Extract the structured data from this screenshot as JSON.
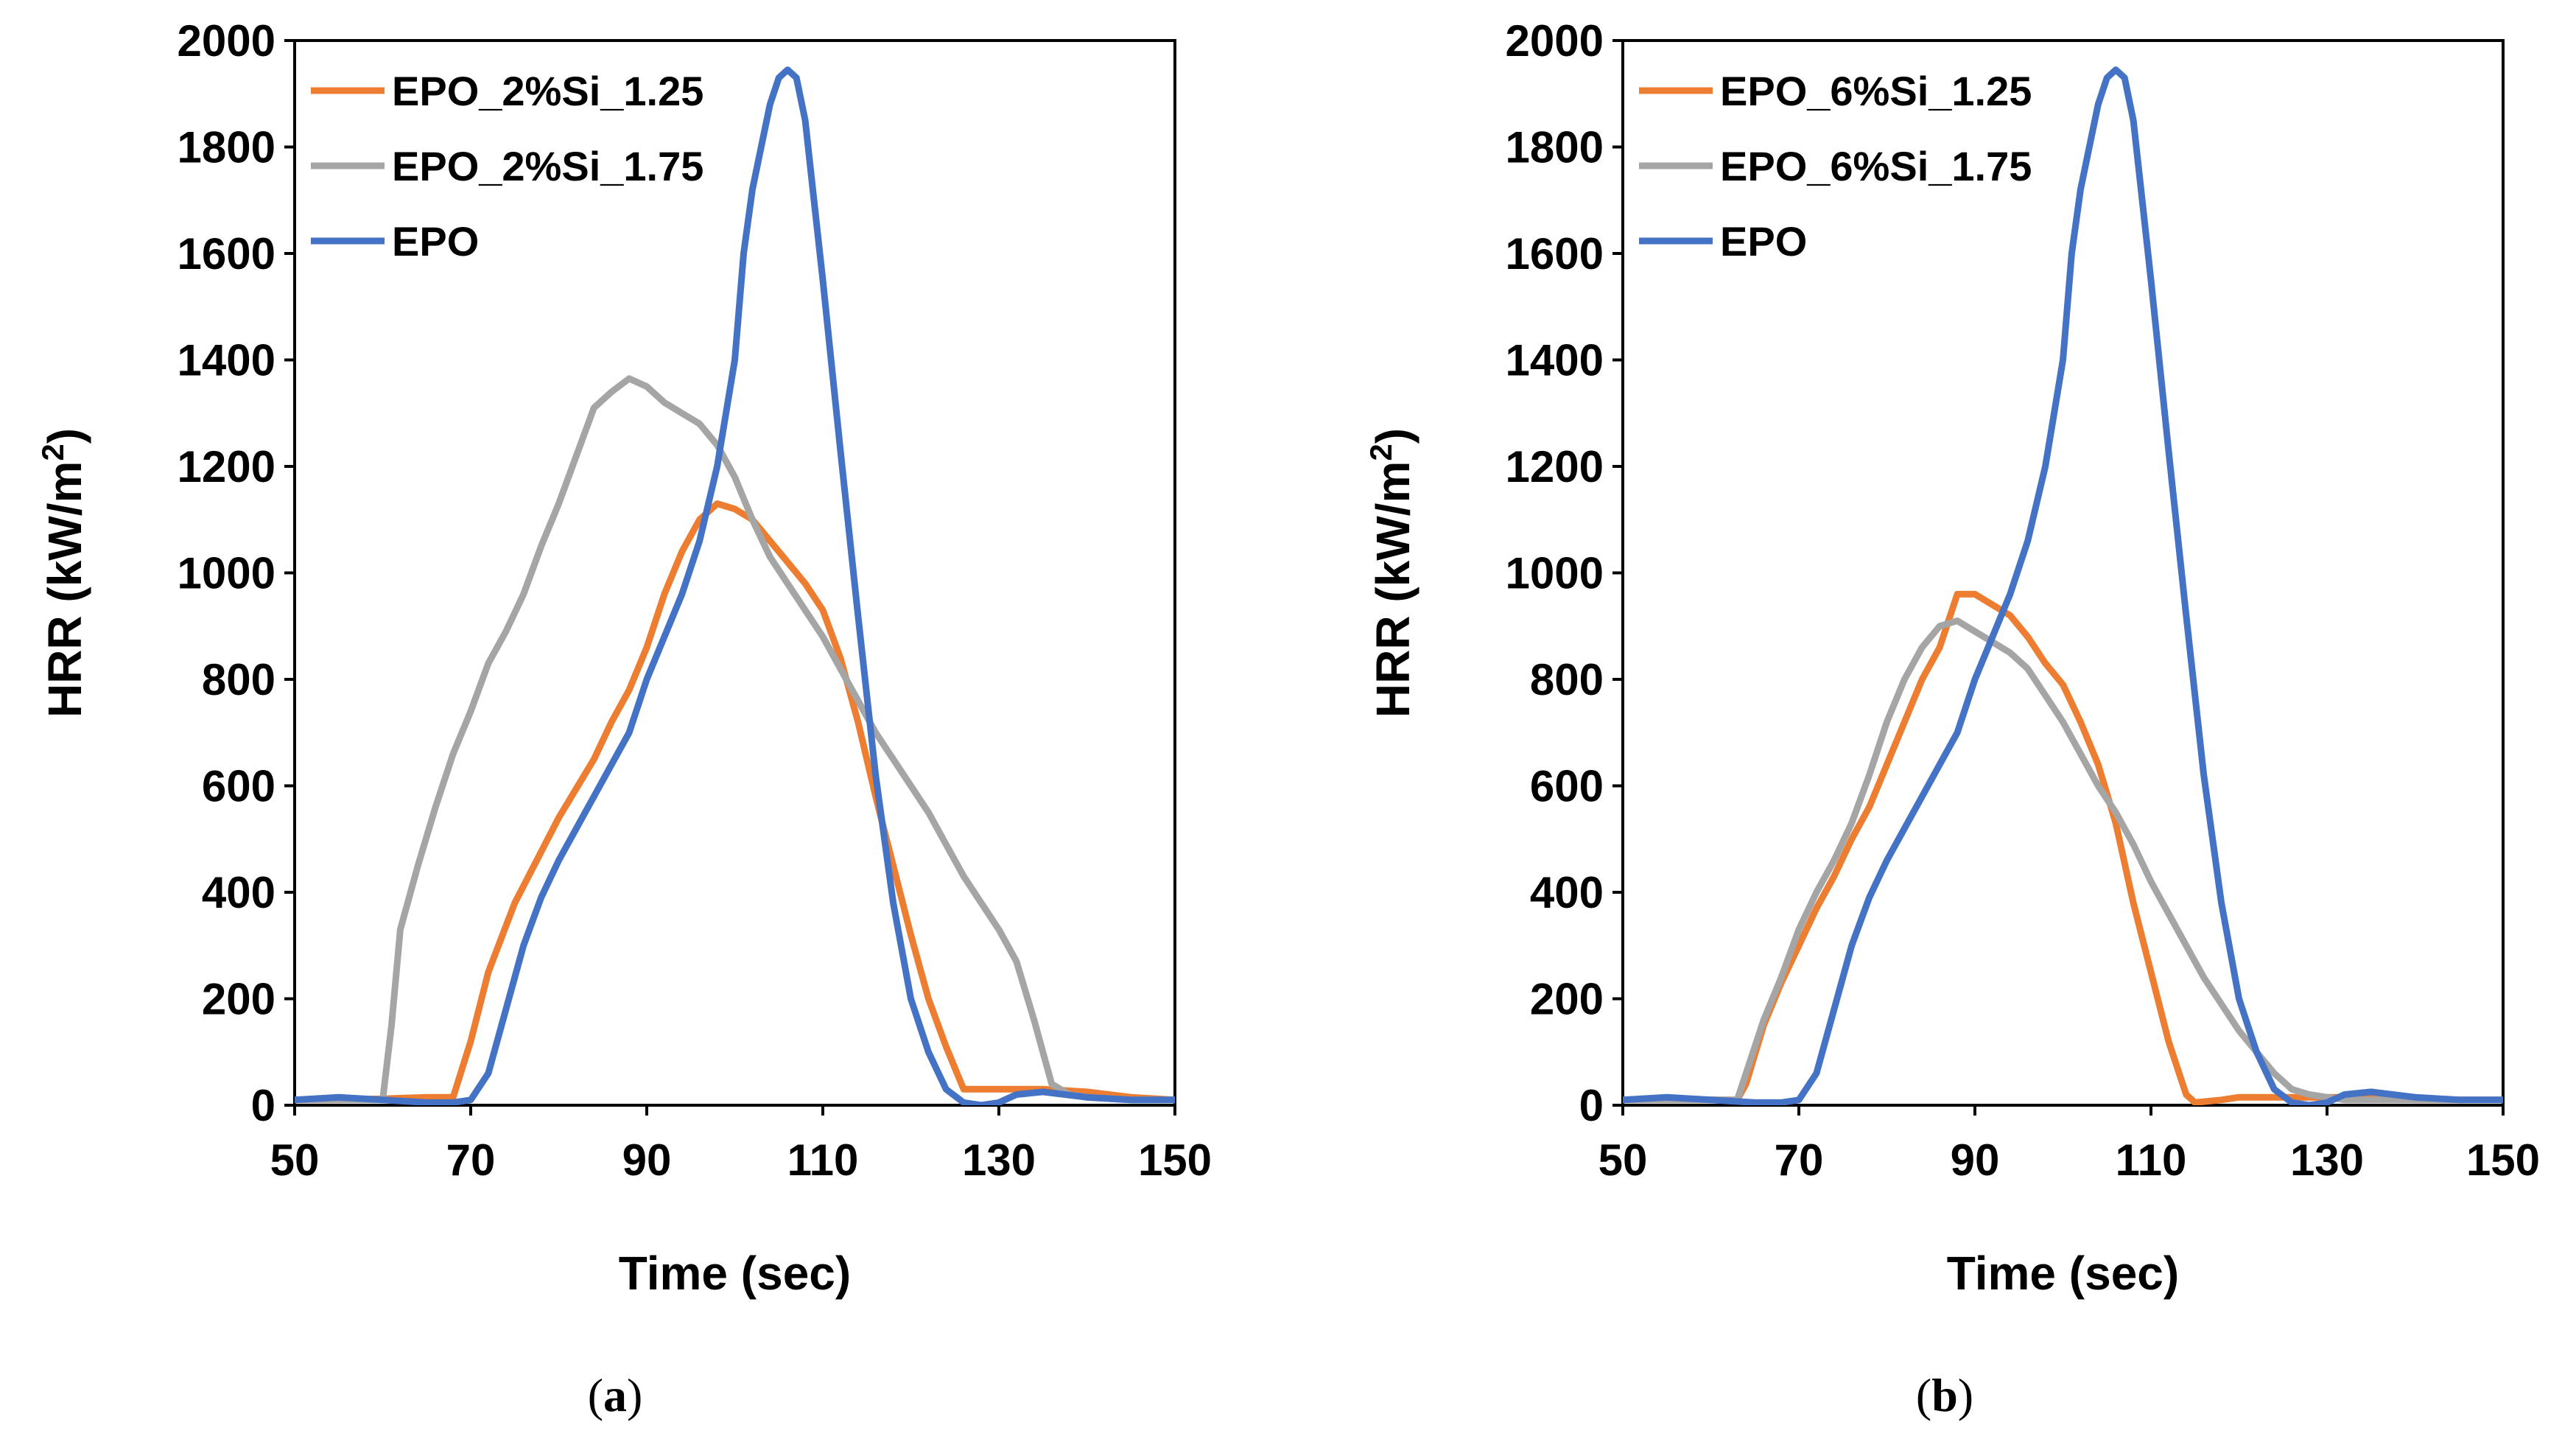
{
  "chart_data": [
    {
      "type": "line",
      "panel_label": "a",
      "xlabel": "Time (sec)",
      "ylabel": "HRR (kW/m",
      "ylabel_sup": "2",
      "ylabel_end": ")",
      "xlim": [
        50,
        150
      ],
      "ylim": [
        0,
        2000
      ],
      "xticks": [
        50,
        70,
        90,
        110,
        130,
        150
      ],
      "yticks": [
        0,
        200,
        400,
        600,
        800,
        1000,
        1200,
        1400,
        1600,
        1800,
        2000
      ],
      "legend_position": "top-left",
      "series": [
        {
          "name": "EPO_2%Si_1.25",
          "color": "#ED7D31",
          "x": [
            50,
            55,
            60,
            65,
            68,
            70,
            72,
            75,
            80,
            84,
            86,
            88,
            90,
            92,
            94,
            96,
            98,
            100,
            102,
            104,
            106,
            108,
            110,
            112,
            114,
            116,
            118,
            120,
            122,
            124,
            126,
            130,
            135,
            140,
            145,
            150
          ],
          "y": [
            10,
            10,
            12,
            15,
            15,
            120,
            250,
            380,
            540,
            650,
            720,
            780,
            860,
            960,
            1040,
            1100,
            1130,
            1120,
            1100,
            1060,
            1020,
            980,
            930,
            840,
            720,
            580,
            450,
            320,
            200,
            110,
            30,
            30,
            30,
            25,
            15,
            10
          ]
        },
        {
          "name": "EPO_2%Si_1.75",
          "color": "#A5A5A5",
          "x": [
            50,
            55,
            60,
            61,
            62,
            64,
            66,
            68,
            70,
            72,
            74,
            76,
            78,
            80,
            82,
            84,
            86,
            88,
            90,
            92,
            94,
            96,
            98,
            100,
            102,
            104,
            106,
            108,
            110,
            112,
            114,
            116,
            118,
            120,
            122,
            124,
            126,
            128,
            130,
            132,
            134,
            136,
            138,
            140,
            145,
            150
          ],
          "y": [
            10,
            10,
            10,
            150,
            330,
            450,
            560,
            660,
            740,
            830,
            890,
            960,
            1050,
            1130,
            1220,
            1310,
            1340,
            1365,
            1350,
            1320,
            1300,
            1280,
            1240,
            1180,
            1100,
            1030,
            980,
            930,
            880,
            820,
            760,
            700,
            650,
            600,
            550,
            490,
            430,
            380,
            330,
            270,
            160,
            40,
            20,
            15,
            10,
            10
          ]
        },
        {
          "name": "EPO",
          "color": "#4472C4",
          "x": [
            50,
            55,
            60,
            65,
            68,
            70,
            72,
            74,
            76,
            78,
            80,
            82,
            84,
            86,
            88,
            90,
            92,
            94,
            96,
            98,
            100,
            101,
            102,
            103,
            104,
            105,
            106,
            107,
            108,
            109,
            110,
            112,
            114,
            116,
            118,
            120,
            122,
            124,
            126,
            128,
            130,
            132,
            135,
            140,
            145,
            150
          ],
          "y": [
            10,
            15,
            10,
            5,
            5,
            10,
            60,
            180,
            300,
            390,
            460,
            520,
            580,
            640,
            700,
            800,
            880,
            960,
            1060,
            1200,
            1400,
            1600,
            1720,
            1800,
            1880,
            1930,
            1945,
            1930,
            1850,
            1700,
            1550,
            1230,
            920,
            620,
            380,
            200,
            100,
            30,
            5,
            0,
            5,
            20,
            25,
            15,
            10,
            10
          ]
        }
      ]
    },
    {
      "type": "line",
      "panel_label": "b",
      "xlabel": "Time (sec)",
      "ylabel": "HRR (kW/m",
      "ylabel_sup": "2",
      "ylabel_end": ")",
      "xlim": [
        50,
        150
      ],
      "ylim": [
        0,
        2000
      ],
      "xticks": [
        50,
        70,
        90,
        110,
        130,
        150
      ],
      "yticks": [
        0,
        200,
        400,
        600,
        800,
        1000,
        1200,
        1400,
        1600,
        1800,
        2000
      ],
      "legend_position": "top-left",
      "series": [
        {
          "name": "EPO_6%Si_1.25",
          "color": "#ED7D31",
          "x": [
            50,
            55,
            60,
            63,
            64,
            66,
            68,
            70,
            72,
            74,
            76,
            78,
            80,
            82,
            84,
            86,
            88,
            90,
            92,
            94,
            96,
            98,
            100,
            102,
            104,
            106,
            108,
            110,
            112,
            114,
            115,
            118,
            120,
            125,
            130,
            135,
            140,
            145,
            150
          ],
          "y": [
            10,
            10,
            10,
            10,
            40,
            150,
            230,
            300,
            370,
            430,
            500,
            560,
            640,
            720,
            800,
            860,
            960,
            960,
            940,
            920,
            880,
            830,
            790,
            720,
            640,
            530,
            380,
            250,
            120,
            20,
            5,
            10,
            15,
            15,
            15,
            15,
            10,
            10,
            10
          ]
        },
        {
          "name": "EPO_6%Si_1.75",
          "color": "#A5A5A5",
          "x": [
            50,
            55,
            60,
            63,
            64,
            66,
            68,
            70,
            72,
            74,
            76,
            78,
            80,
            82,
            84,
            86,
            88,
            90,
            92,
            94,
            96,
            98,
            100,
            102,
            104,
            106,
            108,
            110,
            112,
            114,
            116,
            118,
            120,
            122,
            124,
            126,
            128,
            130,
            132,
            135,
            140,
            145,
            150
          ],
          "y": [
            10,
            10,
            10,
            10,
            60,
            160,
            240,
            330,
            400,
            460,
            530,
            620,
            720,
            800,
            860,
            900,
            910,
            890,
            870,
            850,
            820,
            770,
            720,
            660,
            600,
            550,
            490,
            420,
            360,
            300,
            240,
            190,
            140,
            100,
            60,
            30,
            20,
            15,
            10,
            10,
            10,
            10,
            10
          ]
        },
        {
          "name": "EPO",
          "color": "#4472C4",
          "x": [
            50,
            55,
            60,
            65,
            68,
            70,
            72,
            74,
            76,
            78,
            80,
            82,
            84,
            86,
            88,
            90,
            92,
            94,
            96,
            98,
            100,
            101,
            102,
            103,
            104,
            105,
            106,
            107,
            108,
            109,
            110,
            112,
            114,
            116,
            118,
            120,
            122,
            124,
            126,
            128,
            130,
            132,
            135,
            140,
            145,
            150
          ],
          "y": [
            10,
            15,
            10,
            5,
            5,
            10,
            60,
            180,
            300,
            390,
            460,
            520,
            580,
            640,
            700,
            800,
            880,
            960,
            1060,
            1200,
            1400,
            1600,
            1720,
            1800,
            1880,
            1930,
            1945,
            1930,
            1850,
            1700,
            1550,
            1230,
            920,
            620,
            380,
            200,
            100,
            30,
            5,
            0,
            5,
            20,
            25,
            15,
            10,
            10
          ]
        }
      ]
    }
  ]
}
